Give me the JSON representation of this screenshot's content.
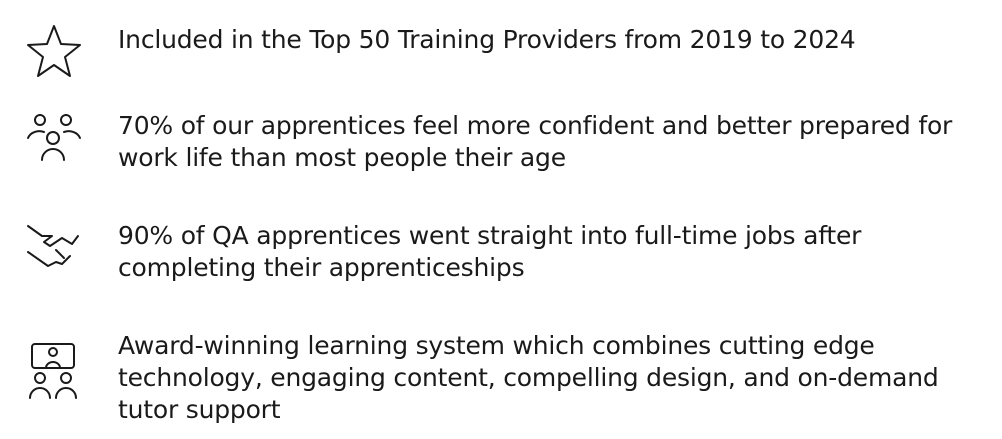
{
  "items": [
    {
      "text": "Included in the Top 50 Training Providers from 2019 to 2024"
    },
    {
      "text": "70% of our apprentices feel more confident and better prepared for work life than most people their age"
    },
    {
      "text": "90% of QA apprentices went straight into full-time jobs after completing their apprenticeships"
    },
    {
      "text": "Award-winning learning system which combines cutting edge technology, engaging content, compelling design, and on-demand tutor support"
    }
  ]
}
